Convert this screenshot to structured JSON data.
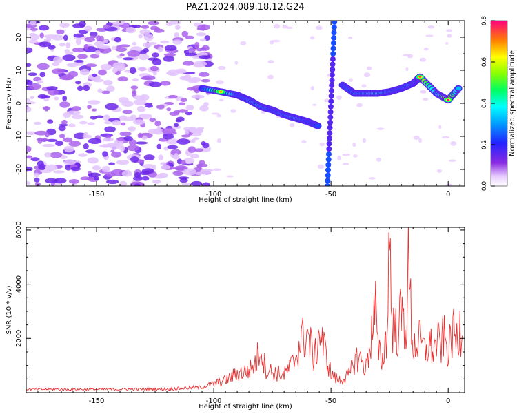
{
  "chart_data": [
    {
      "type": "heatmap",
      "title": "PAZ1.2024.089.18.12.G24",
      "xlabel": "Height of straight line (km)",
      "ylabel": "Frequency (Hz)",
      "xlim": [
        -180,
        7
      ],
      "ylim": [
        -25,
        25
      ],
      "xticks": [
        -150,
        -100,
        -50,
        0
      ],
      "yticks": [
        -20,
        -10,
        0,
        10,
        20
      ],
      "colorbar": {
        "label": "Normalized spectral amplitude",
        "range": [
          0,
          0.8
        ],
        "ticks": [
          "0.0",
          "0.2",
          "0.4",
          "0.6",
          "0.8"
        ]
      },
      "signal_track": [
        {
          "x": -105,
          "freq": 4.5,
          "amp": 0.25
        },
        {
          "x": -97,
          "freq": 3.5,
          "amp": 0.7
        },
        {
          "x": -90,
          "freq": 2.5,
          "amp": 0.3
        },
        {
          "x": -85,
          "freq": 1.0,
          "amp": 0.35
        },
        {
          "x": -80,
          "freq": -1.0,
          "amp": 0.4
        },
        {
          "x": -75,
          "freq": -2.0,
          "amp": 0.3
        },
        {
          "x": -70,
          "freq": -3.5,
          "amp": 0.35
        },
        {
          "x": -65,
          "freq": -4.5,
          "amp": 0.4
        },
        {
          "x": -60,
          "freq": -5.5,
          "amp": 0.3
        },
        {
          "x": -55,
          "freq": -7.0,
          "amp": 0.3
        },
        {
          "x": -45,
          "freq": 5.5,
          "amp": 0.3
        },
        {
          "x": -40,
          "freq": 3.0,
          "amp": 0.35
        },
        {
          "x": -35,
          "freq": 3.0,
          "amp": 0.4
        },
        {
          "x": -30,
          "freq": 3.0,
          "amp": 0.5
        },
        {
          "x": -25,
          "freq": 3.5,
          "amp": 0.35
        },
        {
          "x": -20,
          "freq": 4.5,
          "amp": 0.3
        },
        {
          "x": -15,
          "freq": 6.0,
          "amp": 0.4
        },
        {
          "x": -12,
          "freq": 8.0,
          "amp": 0.75
        },
        {
          "x": -5,
          "freq": 3.0,
          "amp": 0.4
        },
        {
          "x": 0,
          "freq": 1.0,
          "amp": 0.8
        },
        {
          "x": 5,
          "freq": 5.0,
          "amp": 0.35
        }
      ]
    },
    {
      "type": "line",
      "xlabel": "Height of straight line (km)",
      "ylabel": "SNR (10 * v/v)",
      "xlim": [
        -180,
        7
      ],
      "ylim": [
        0,
        6100
      ],
      "xticks": [
        -150,
        -100,
        -50,
        0
      ],
      "yticks": [
        2000,
        4000,
        6000
      ],
      "series": [
        {
          "x": [
            -180,
            -150,
            -120,
            -105,
            -95,
            -90,
            -85,
            -82,
            -80,
            -78,
            -75,
            -70,
            -66,
            -63,
            -60,
            -57,
            -55,
            -50,
            -47,
            -45,
            -42,
            -40,
            -38,
            -35,
            -33,
            -31,
            -30,
            -28,
            -26,
            -25,
            -24,
            -22,
            -20,
            -18,
            -17,
            -15,
            -12,
            -10,
            -8,
            -6,
            -5,
            -3,
            -2,
            0,
            2,
            4,
            5,
            6
          ],
          "y": [
            120,
            120,
            130,
            200,
            450,
            700,
            800,
            1100,
            1750,
            900,
            750,
            650,
            1100,
            1900,
            2150,
            1200,
            2300,
            700,
            450,
            500,
            650,
            1200,
            1300,
            900,
            2000,
            3100,
            1500,
            1200,
            2300,
            6100,
            2600,
            2200,
            2800,
            2400,
            4500,
            1700,
            1900,
            1500,
            1800,
            1500,
            1900,
            1700,
            2100,
            1500,
            2200,
            1900,
            2500,
            2100
          ]
        }
      ]
    }
  ]
}
